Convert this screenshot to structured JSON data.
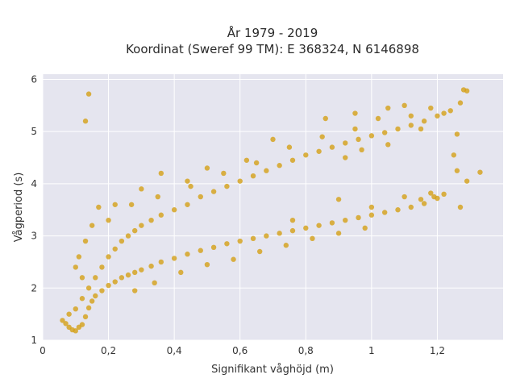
{
  "chart_data": {
    "type": "scatter",
    "title": "År 1979 - 2019",
    "subtitle": "Koordinat (Sweref 99 TM): E 368324, N 6146898",
    "xlabel": "Signifikant våghöjd (m)",
    "ylabel": "Vågperiod (s)",
    "xlim": [
      0,
      1.4
    ],
    "ylim": [
      1,
      6.1
    ],
    "x_ticks": [
      0,
      0.2,
      0.4,
      0.6,
      0.8,
      1.0,
      1.2
    ],
    "x_tick_labels": [
      "0",
      "0,2",
      "0,4",
      "0,6",
      "0,8",
      "1",
      "1,2"
    ],
    "y_ticks": [
      1,
      2,
      3,
      4,
      5,
      6
    ],
    "y_tick_labels": [
      "1",
      "2",
      "3",
      "4",
      "5",
      "6"
    ],
    "grid": true,
    "legend": "none",
    "marker_color": "#D4A017",
    "plot_background": "#E5E5EF",
    "series": [
      {
        "name": "",
        "points": [
          [
            0.06,
            1.38
          ],
          [
            0.07,
            1.32
          ],
          [
            0.08,
            1.25
          ],
          [
            0.09,
            1.2
          ],
          [
            0.1,
            1.18
          ],
          [
            0.11,
            1.25
          ],
          [
            0.12,
            1.3
          ],
          [
            0.13,
            1.45
          ],
          [
            0.14,
            1.62
          ],
          [
            0.15,
            1.75
          ],
          [
            0.16,
            1.85
          ],
          [
            0.18,
            1.95
          ],
          [
            0.2,
            2.05
          ],
          [
            0.22,
            2.12
          ],
          [
            0.24,
            2.2
          ],
          [
            0.26,
            2.25
          ],
          [
            0.28,
            2.3
          ],
          [
            0.3,
            2.35
          ],
          [
            0.33,
            2.42
          ],
          [
            0.36,
            2.5
          ],
          [
            0.4,
            2.57
          ],
          [
            0.44,
            2.65
          ],
          [
            0.48,
            2.72
          ],
          [
            0.52,
            2.78
          ],
          [
            0.56,
            2.85
          ],
          [
            0.6,
            2.9
          ],
          [
            0.64,
            2.95
          ],
          [
            0.68,
            3.0
          ],
          [
            0.72,
            3.05
          ],
          [
            0.76,
            3.1
          ],
          [
            0.8,
            3.15
          ],
          [
            0.84,
            3.2
          ],
          [
            0.88,
            3.25
          ],
          [
            0.92,
            3.3
          ],
          [
            0.96,
            3.35
          ],
          [
            1.0,
            3.4
          ],
          [
            1.04,
            3.45
          ],
          [
            1.08,
            3.5
          ],
          [
            1.12,
            3.55
          ],
          [
            1.16,
            3.62
          ],
          [
            1.19,
            3.75
          ],
          [
            1.22,
            3.8
          ],
          [
            1.2,
            3.72
          ],
          [
            1.15,
            3.7
          ],
          [
            0.08,
            1.5
          ],
          [
            0.1,
            1.6
          ],
          [
            0.12,
            1.8
          ],
          [
            0.14,
            2.0
          ],
          [
            0.16,
            2.2
          ],
          [
            0.18,
            2.4
          ],
          [
            0.2,
            2.6
          ],
          [
            0.22,
            2.75
          ],
          [
            0.24,
            2.9
          ],
          [
            0.26,
            3.0
          ],
          [
            0.28,
            3.1
          ],
          [
            0.3,
            3.2
          ],
          [
            0.33,
            3.3
          ],
          [
            0.36,
            3.4
          ],
          [
            0.4,
            3.5
          ],
          [
            0.44,
            3.6
          ],
          [
            0.48,
            3.75
          ],
          [
            0.52,
            3.85
          ],
          [
            0.56,
            3.95
          ],
          [
            0.6,
            4.05
          ],
          [
            0.64,
            4.15
          ],
          [
            0.68,
            4.25
          ],
          [
            0.72,
            4.35
          ],
          [
            0.76,
            4.45
          ],
          [
            0.8,
            4.55
          ],
          [
            0.84,
            4.62
          ],
          [
            0.88,
            4.7
          ],
          [
            0.92,
            4.78
          ],
          [
            0.96,
            4.85
          ],
          [
            1.0,
            4.92
          ],
          [
            1.04,
            4.98
          ],
          [
            1.08,
            5.05
          ],
          [
            1.12,
            5.12
          ],
          [
            1.16,
            5.2
          ],
          [
            1.2,
            5.3
          ],
          [
            1.24,
            5.4
          ],
          [
            1.27,
            5.55
          ],
          [
            1.28,
            5.8
          ],
          [
            1.29,
            5.78
          ],
          [
            0.14,
            5.72
          ],
          [
            0.13,
            5.2
          ],
          [
            0.36,
            4.2
          ],
          [
            0.44,
            4.05
          ],
          [
            0.62,
            4.45
          ],
          [
            0.7,
            4.85
          ],
          [
            0.86,
            5.25
          ],
          [
            0.95,
            5.35
          ],
          [
            1.05,
            5.45
          ],
          [
            1.1,
            5.5
          ],
          [
            1.26,
            4.25
          ],
          [
            1.27,
            3.55
          ],
          [
            1.33,
            4.22
          ],
          [
            1.29,
            4.05
          ],
          [
            1.25,
            4.55
          ],
          [
            1.26,
            4.95
          ],
          [
            0.17,
            3.55
          ],
          [
            0.15,
            3.2
          ],
          [
            0.22,
            3.6
          ],
          [
            0.3,
            3.9
          ],
          [
            0.5,
            4.3
          ],
          [
            0.76,
            3.3
          ],
          [
            0.9,
            3.7
          ],
          [
            1.0,
            3.55
          ],
          [
            1.1,
            3.75
          ],
          [
            1.18,
            3.82
          ],
          [
            0.28,
            1.95
          ],
          [
            0.34,
            2.1
          ],
          [
            0.42,
            2.3
          ],
          [
            0.5,
            2.45
          ],
          [
            0.58,
            2.55
          ],
          [
            0.66,
            2.7
          ],
          [
            0.74,
            2.82
          ],
          [
            0.82,
            2.95
          ],
          [
            0.9,
            3.05
          ],
          [
            0.98,
            3.15
          ],
          [
            0.12,
            2.2
          ],
          [
            0.1,
            2.4
          ],
          [
            0.11,
            2.6
          ],
          [
            0.13,
            2.9
          ],
          [
            0.2,
            3.3
          ],
          [
            0.27,
            3.6
          ],
          [
            0.35,
            3.75
          ],
          [
            0.45,
            3.95
          ],
          [
            0.55,
            4.2
          ],
          [
            0.65,
            4.4
          ],
          [
            0.75,
            4.7
          ],
          [
            0.85,
            4.9
          ],
          [
            0.95,
            5.05
          ],
          [
            1.02,
            5.25
          ],
          [
            1.12,
            5.3
          ],
          [
            1.18,
            5.45
          ],
          [
            1.22,
            5.35
          ],
          [
            1.15,
            5.05
          ],
          [
            1.05,
            4.75
          ],
          [
            0.97,
            4.65
          ],
          [
            0.92,
            4.5
          ]
        ]
      }
    ]
  }
}
